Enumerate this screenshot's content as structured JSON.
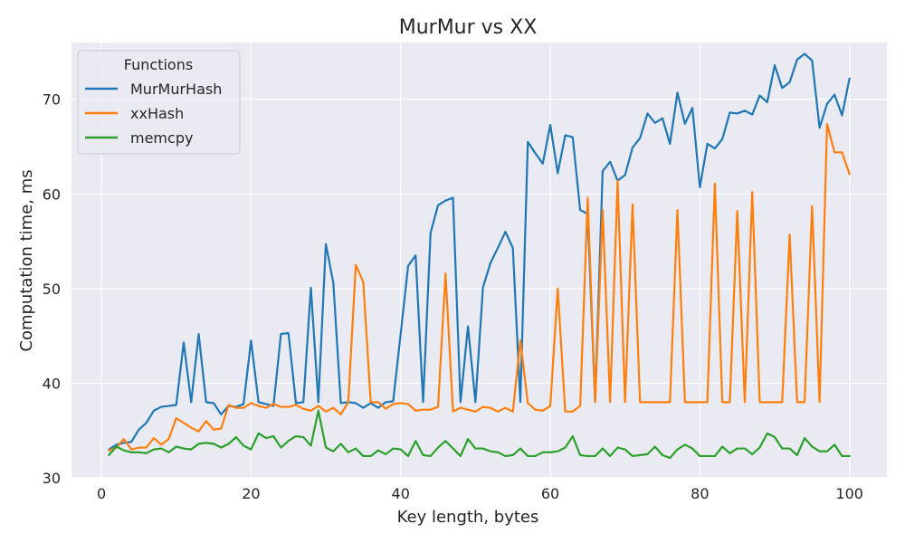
{
  "chart_data": {
    "type": "line",
    "title": "MurMur vs XX",
    "xlabel": "Key length, bytes",
    "ylabel": "Computation time, ms",
    "xlim": [
      -4,
      105
    ],
    "ylim": [
      30,
      76
    ],
    "xticks": [
      0,
      20,
      40,
      60,
      80,
      100
    ],
    "yticks": [
      30,
      40,
      50,
      60,
      70
    ],
    "grid": true,
    "legend": {
      "title": "Functions",
      "placement": "top-left"
    },
    "x_start": 1,
    "x_step": 1,
    "series": [
      {
        "name": "MurMurHash",
        "color": "#1f77b4",
        "values": [
          33.0,
          33.5,
          33.7,
          33.8,
          35.1,
          35.8,
          37.1,
          37.5,
          37.6,
          37.7,
          44.3,
          38.0,
          45.2,
          38.0,
          37.9,
          36.7,
          37.6,
          37.5,
          37.8,
          44.5,
          38.0,
          37.8,
          37.6,
          45.2,
          45.3,
          37.9,
          38.0,
          50.1,
          38.0,
          54.7,
          50.6,
          37.9,
          38.0,
          37.9,
          37.4,
          37.9,
          37.4,
          38.0,
          38.1,
          45.2,
          52.4,
          53.5,
          38.0,
          55.9,
          58.8,
          59.3,
          59.6,
          38.0,
          46.0,
          38.0,
          50.1,
          52.7,
          54.3,
          56.0,
          54.3,
          38.0,
          65.5,
          64.3,
          63.2,
          67.3,
          62.2,
          66.2,
          66.0,
          58.3,
          57.9,
          38.0,
          62.4,
          63.4,
          61.4,
          62.0,
          64.9,
          65.9,
          68.5,
          67.5,
          68.0,
          65.3,
          70.7,
          67.4,
          69.1,
          60.7,
          65.3,
          64.8,
          65.8,
          68.6,
          68.5,
          68.8,
          68.4,
          70.4,
          69.7,
          73.6,
          71.2,
          71.8,
          74.2,
          74.8,
          74.1,
          67.0,
          69.5,
          70.5,
          68.3,
          72.2
        ]
      },
      {
        "name": "xxHash",
        "color": "#ff7f0e",
        "values": [
          32.9,
          33.2,
          34.1,
          33.0,
          33.2,
          33.2,
          34.2,
          33.5,
          34.1,
          36.3,
          35.8,
          35.3,
          34.9,
          36.0,
          35.1,
          35.2,
          37.7,
          37.4,
          37.4,
          37.9,
          37.6,
          37.4,
          37.8,
          37.5,
          37.5,
          37.7,
          37.3,
          37.1,
          37.6,
          37.0,
          37.4,
          36.7,
          38.0,
          52.5,
          50.7,
          38.0,
          38.0,
          37.3,
          37.8,
          37.9,
          37.8,
          37.1,
          37.2,
          37.2,
          37.5,
          51.6,
          37.0,
          37.4,
          37.2,
          37.0,
          37.5,
          37.4,
          37.0,
          37.4,
          37.0,
          44.5,
          37.9,
          37.2,
          37.1,
          37.6,
          50.0,
          37.0,
          37.0,
          37.6,
          59.6,
          38.0,
          58.3,
          38.0,
          61.4,
          38.0,
          58.9,
          38.0,
          38.0,
          38.0,
          38.0,
          38.0,
          58.3,
          38.0,
          38.0,
          38.0,
          38.0,
          61.1,
          38.0,
          38.0,
          58.2,
          38.0,
          60.2,
          38.0,
          38.0,
          38.0,
          38.0,
          55.7,
          38.0,
          38.0,
          58.7,
          38.0,
          67.4,
          64.4,
          64.4,
          62.1
        ]
      },
      {
        "name": "memcpy",
        "color": "#2ca02c",
        "values": [
          32.4,
          33.3,
          32.9,
          32.7,
          32.7,
          32.6,
          33.0,
          33.1,
          32.7,
          33.3,
          33.1,
          33.0,
          33.6,
          33.7,
          33.6,
          33.2,
          33.6,
          34.3,
          33.4,
          33.0,
          34.7,
          34.2,
          34.4,
          33.2,
          33.9,
          34.4,
          34.3,
          33.4,
          37.1,
          33.2,
          32.8,
          33.6,
          32.7,
          33.1,
          32.3,
          32.3,
          32.9,
          32.5,
          33.1,
          33.0,
          32.3,
          33.9,
          32.4,
          32.3,
          33.2,
          33.9,
          33.1,
          32.3,
          34.1,
          33.1,
          33.1,
          32.8,
          32.7,
          32.3,
          32.4,
          33.1,
          32.3,
          32.3,
          32.7,
          32.7,
          32.8,
          33.2,
          34.4,
          32.4,
          32.3,
          32.3,
          33.1,
          32.3,
          33.2,
          33.0,
          32.3,
          32.4,
          32.5,
          33.3,
          32.4,
          32.1,
          33.0,
          33.5,
          33.1,
          32.3,
          32.3,
          32.3,
          33.3,
          32.6,
          33.1,
          33.1,
          32.5,
          33.2,
          34.7,
          34.3,
          33.1,
          33.1,
          32.4,
          34.2,
          33.3,
          32.8,
          32.8,
          33.5,
          32.3,
          32.3
        ]
      }
    ]
  }
}
